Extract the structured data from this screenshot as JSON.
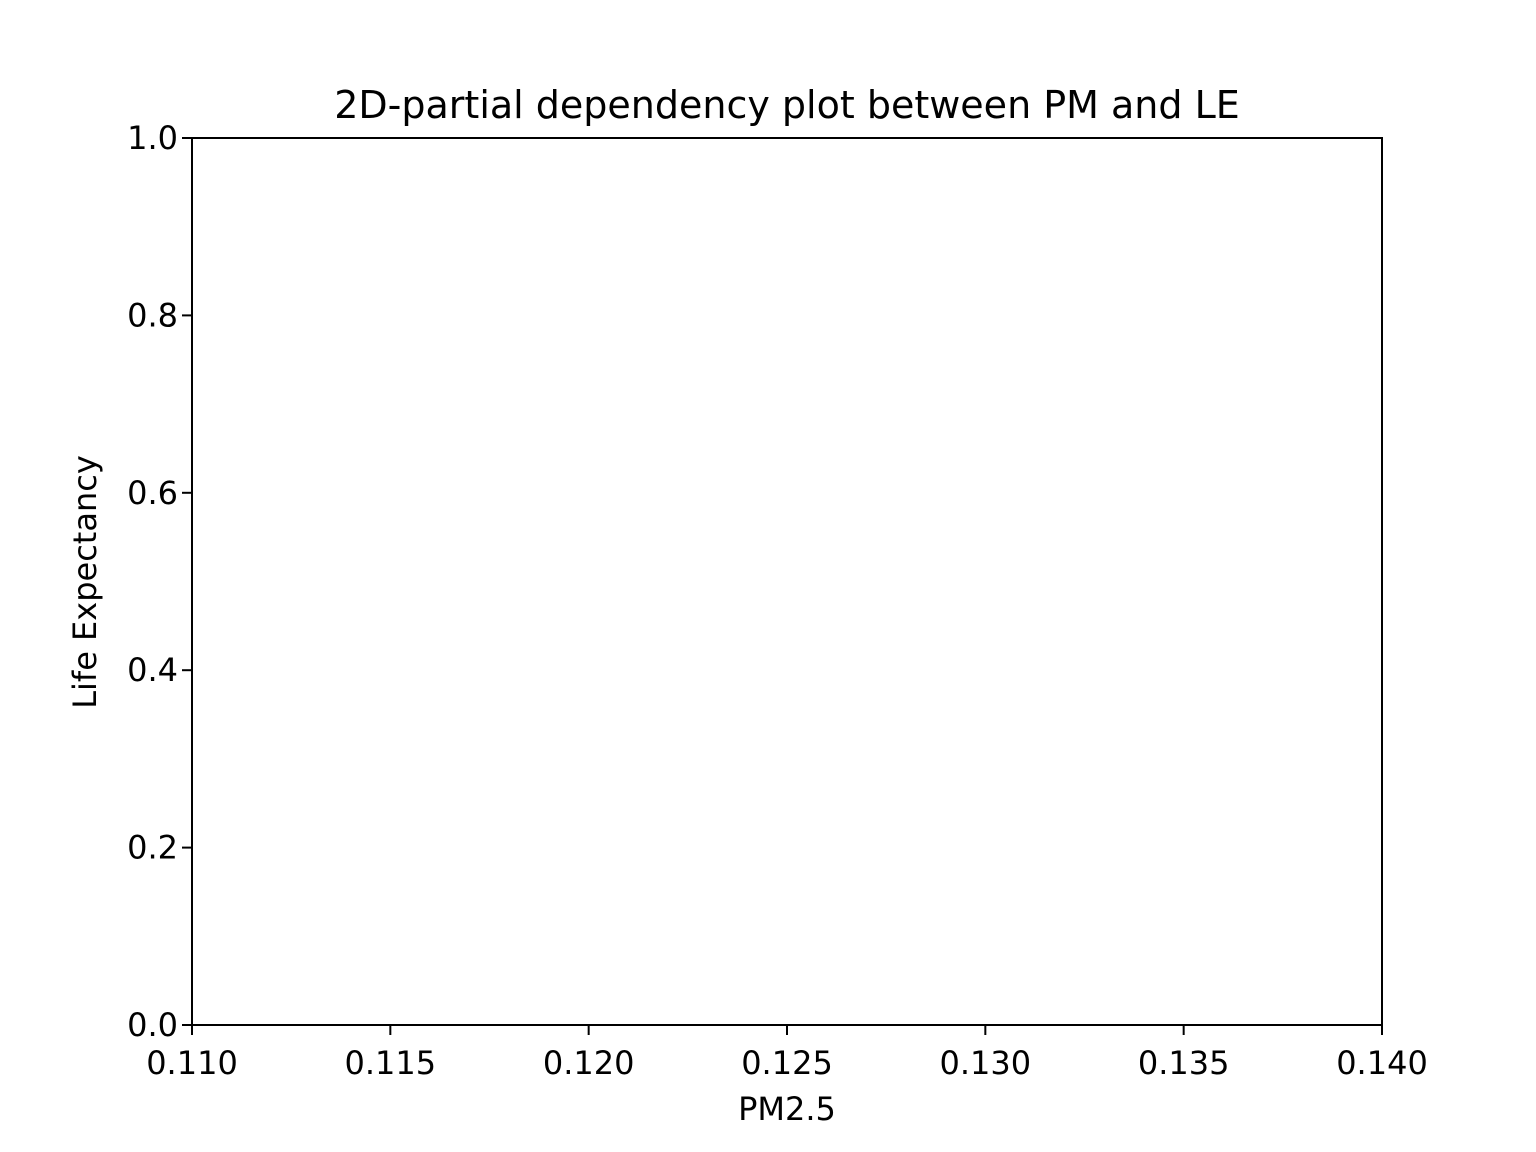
{
  "chart_data": {
    "type": "scatter",
    "title": "2D-partial dependency plot between PM and LE",
    "xlabel": "PM2.5",
    "ylabel": "Life Expectancy",
    "xlim": [
      0.11,
      0.14
    ],
    "ylim": [
      0.0,
      1.0
    ],
    "xticks": [
      "0.110",
      "0.115",
      "0.120",
      "0.125",
      "0.130",
      "0.135",
      "0.140"
    ],
    "yticks": [
      "0.0",
      "0.2",
      "0.4",
      "0.6",
      "0.8",
      "1.0"
    ],
    "grid": false,
    "series": []
  }
}
